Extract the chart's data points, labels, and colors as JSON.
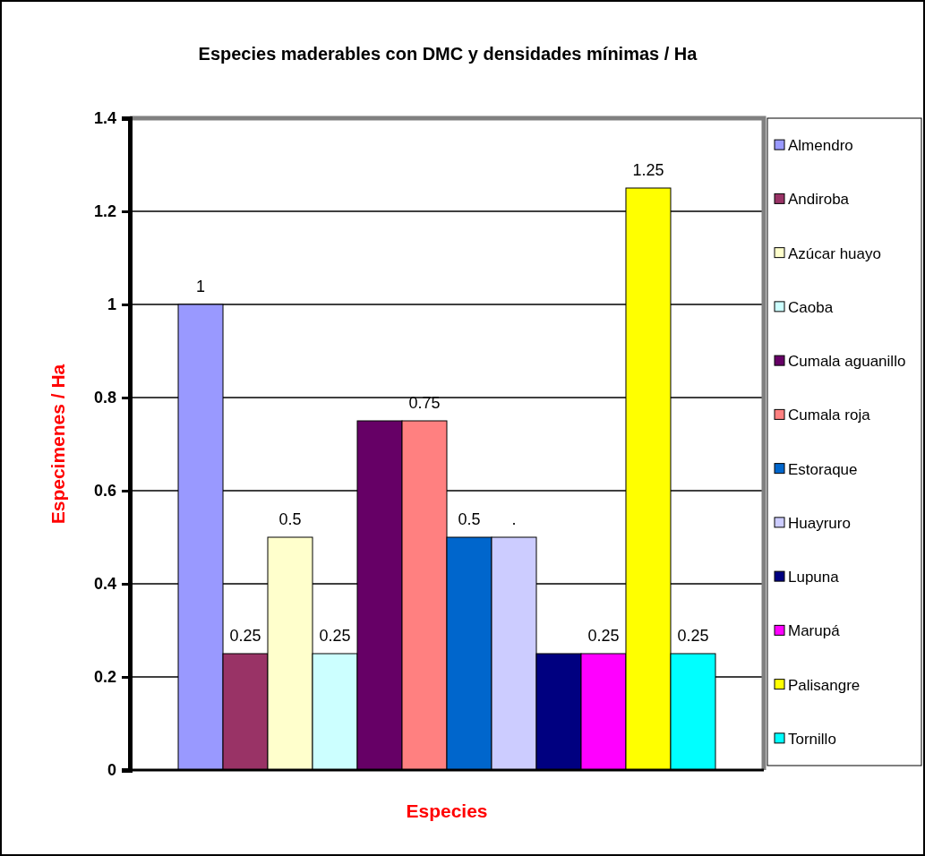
{
  "chart_data": {
    "type": "bar",
    "title": "Especies maderables con DMC y densidades mínimas / Ha",
    "xlabel": "Especies",
    "ylabel": "Especimenes / Ha",
    "categories": [
      null
    ],
    "ylim": [
      0,
      1.4
    ],
    "yticks": [
      0,
      0.2,
      0.4,
      0.6,
      0.8,
      1,
      1.2,
      1.4
    ],
    "grid": "y",
    "legend": "right",
    "series": [
      {
        "name": "Almendro",
        "color": "#9999ff",
        "values": [
          1
        ],
        "value_labels": [
          "1"
        ]
      },
      {
        "name": "Andiroba",
        "color": "#993366",
        "values": [
          0.25
        ],
        "value_labels": [
          "0.25"
        ]
      },
      {
        "name": "Azúcar huayo",
        "color": "#ffffcc",
        "values": [
          0.5
        ],
        "value_labels": [
          "0.5"
        ]
      },
      {
        "name": "Caoba",
        "color": "#ccffff",
        "values": [
          0.25
        ],
        "value_labels": [
          "0.25"
        ]
      },
      {
        "name": "Cumala aguanillo",
        "color": "#660066",
        "values": [
          0.75
        ],
        "value_labels": [
          null
        ]
      },
      {
        "name": "Cumala roja",
        "color": "#ff8080",
        "values": [
          0.75
        ],
        "value_labels": [
          "0.75"
        ]
      },
      {
        "name": "Estoraque",
        "color": "#0066cc",
        "values": [
          0.5
        ],
        "value_labels": [
          "0.5"
        ]
      },
      {
        "name": "Huayruro",
        "color": "#ccccff",
        "values": [
          0.5
        ],
        "value_labels": [
          "."
        ]
      },
      {
        "name": "Lupuna",
        "color": "#000080",
        "values": [
          0.25
        ],
        "value_labels": [
          null
        ]
      },
      {
        "name": "Marupá",
        "color": "#ff00ff",
        "values": [
          0.25
        ],
        "value_labels": [
          "0.25"
        ]
      },
      {
        "name": "Palisangre",
        "color": "#ffff00",
        "values": [
          1.25
        ],
        "value_labels": [
          "1.25"
        ]
      },
      {
        "name": "Tornillo",
        "color": "#00ffff",
        "values": [
          0.25
        ],
        "value_labels": [
          "0.25"
        ]
      }
    ]
  }
}
